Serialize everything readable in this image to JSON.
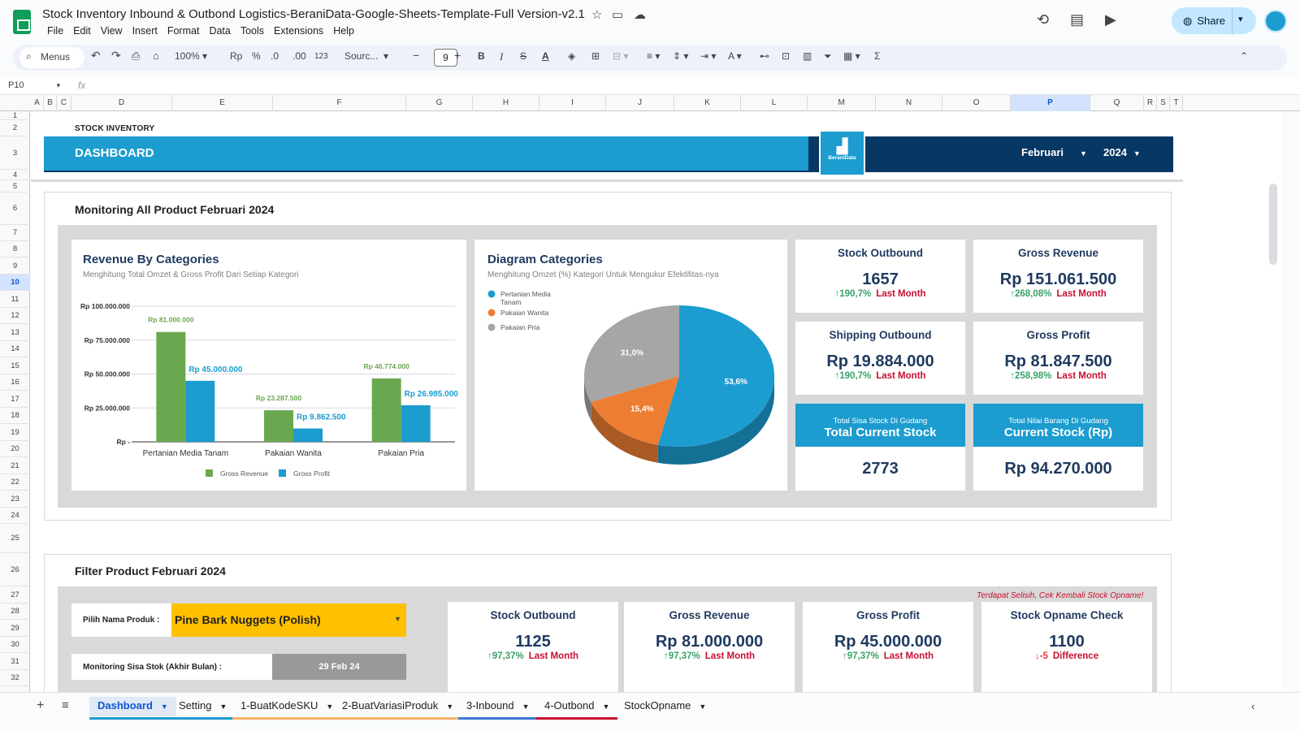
{
  "window": {
    "doc_title": "Stock Inventory Inbound & Outbond Logistics-BeraniData-Google-Sheets-Template-Full Version-v2.1",
    "menu": [
      "File",
      "Edit",
      "View",
      "Insert",
      "Format",
      "Data",
      "Tools",
      "Extensions",
      "Help"
    ],
    "share_label": "Share"
  },
  "toolbar": {
    "search_label": "Menus",
    "zoom": "100%",
    "currency": "Rp",
    "percent": "%",
    "dec_less": ".0",
    "dec_more": ".00",
    "number_format": "123",
    "font": "Sourc...",
    "font_size": "9"
  },
  "formula_bar": {
    "cell_ref": "P10",
    "fx": "fx"
  },
  "columns": [
    "A",
    "B",
    "C",
    "D",
    "E",
    "F",
    "G",
    "H",
    "I",
    "J",
    "K",
    "L",
    "M",
    "N",
    "O",
    "P",
    "Q",
    "R",
    "S",
    "T"
  ],
  "selected_column": "P",
  "rows": [
    "1",
    "2",
    "3",
    "4",
    "5",
    "6",
    "7",
    "8",
    "9",
    "10",
    "11",
    "12",
    "13",
    "14",
    "15",
    "16",
    "17",
    "18",
    "19",
    "20",
    "21",
    "22",
    "23",
    "24",
    "25",
    "26",
    "27",
    "28",
    "29",
    "30",
    "31",
    "32"
  ],
  "selected_row": "10",
  "dashboard": {
    "small_label": "STOCK INVENTORY",
    "title": "DASHBOARD",
    "brand": "BeraniData",
    "month": "Februari",
    "year": "2024",
    "monitoring_title": "Monitoring All Product Februari 2024",
    "filter_title": "Filter Product Februari 2024"
  },
  "revenue_card": {
    "title": "Revenue By Categories",
    "subtitle": "Menghitung Total Omzet & Gross Profit Dari Setiap Kategori"
  },
  "diagram_card": {
    "title": "Diagram Categories",
    "subtitle": "Menghitung Omzet (%) Kategori Untuk Mengukur Efektifitas-nya"
  },
  "chart_data": [
    {
      "type": "bar",
      "title": "Revenue By Categories",
      "categories": [
        "Pertanian Media Tanam",
        "Pakaian Wanita",
        "Pakaian Pria"
      ],
      "series": [
        {
          "name": "Gross Revenue",
          "values": [
            81000000,
            23287500,
            46774000
          ],
          "labels": [
            "Rp 81.000.000",
            "Rp 23.287.500",
            "Rp 46.774.000"
          ],
          "color": "#6aa84f"
        },
        {
          "name": "Gross Profit",
          "values": [
            45000000,
            9862500,
            26985000
          ],
          "labels": [
            "Rp 45.000.000",
            "Rp 9.862.500",
            "Rp 26.985.000"
          ],
          "color": "#1c9ccf"
        }
      ],
      "yticks": [
        "Rp -",
        "Rp 25.000.000",
        "Rp 50.000.000",
        "Rp 75.000.000",
        "Rp 100.000.000"
      ],
      "ylim": [
        0,
        100000000
      ],
      "grid": true,
      "legend": "bottom"
    },
    {
      "type": "pie",
      "title": "Diagram Categories",
      "labels": [
        "Pertanian Media Tanam",
        "Pakaian Wanita",
        "Pakaian Pria"
      ],
      "values": [
        53.6,
        15.4,
        31.0
      ],
      "value_labels": [
        "53,6%",
        "15,4%",
        "31,0%"
      ],
      "colors": [
        "#1c9ccf",
        "#ed7d31",
        "#a6a6a6"
      ],
      "legend": "top-left"
    }
  ],
  "kpis": [
    {
      "title": "Stock Outbound",
      "value": "1657",
      "change": "190,7%",
      "dir": "up",
      "note": "Last Month"
    },
    {
      "title": "Gross Revenue",
      "value": "Rp 151.061.500",
      "change": "268,08%",
      "dir": "up",
      "note": "Last Month"
    },
    {
      "title": "Shipping Outbound",
      "value": "Rp 19.884.000",
      "change": "190,7%",
      "dir": "up",
      "note": "Last Month"
    },
    {
      "title": "Gross Profit",
      "value": "Rp 81.847.500",
      "change": "258,98%",
      "dir": "up",
      "note": "Last Month"
    }
  ],
  "stock_cards": [
    {
      "small": "Total Sisa Stock Di Gudang",
      "big": "Total Current Stock",
      "value": "2773"
    },
    {
      "small": "Total Nilai Barang Di Gudang",
      "big": "Current Stock (Rp)",
      "value": "Rp 94.270.000"
    }
  ],
  "filter": {
    "product_label": "Pilih Nama Produk :",
    "product_value": "Pine Bark Nuggets (Polish)",
    "stock_label": "Monitoring Sisa Stok (Akhir Bulan) :",
    "stock_date": "29 Feb 24",
    "warning": "Terdapat Selisih, Cek Kembali Stock Opname!"
  },
  "filter_kpis": [
    {
      "title": "Stock Outbound",
      "value": "1125",
      "change": "97,37%",
      "dir": "up",
      "note": "Last Month"
    },
    {
      "title": "Gross Revenue",
      "value": "Rp 81.000.000",
      "change": "97,37%",
      "dir": "up",
      "note": "Last Month"
    },
    {
      "title": "Gross Profit",
      "value": "Rp 45.000.000",
      "change": "97,37%",
      "dir": "up",
      "note": "Last Month"
    },
    {
      "title": "Stock Opname Check",
      "value": "1100",
      "change": "-5",
      "dir": "down",
      "note": "Difference"
    }
  ],
  "tabs": [
    {
      "label": "Dashboard",
      "color": "#1c9ccf"
    },
    {
      "label": "Setting",
      "color": "#1c9ccf"
    },
    {
      "label": "1-BuatKodeSKU",
      "color": "#f6b26b"
    },
    {
      "label": "2-BuatVariasiProduk",
      "color": "#f6b26b"
    },
    {
      "label": "3-Inbound",
      "color": "#3c78d8"
    },
    {
      "label": "4-Outbond",
      "color": "#c8102e"
    },
    {
      "label": "StockOpname",
      "color": ""
    }
  ]
}
